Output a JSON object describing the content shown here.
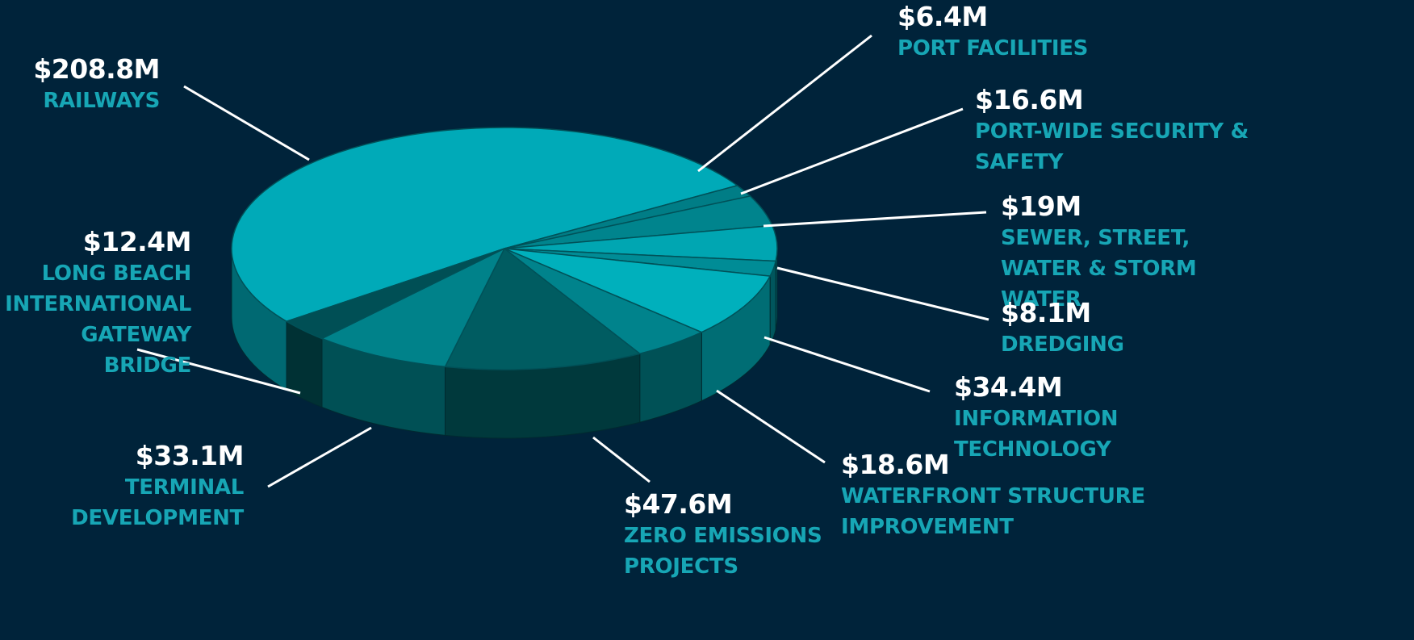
{
  "chart_data": {
    "type": "pie3d",
    "categories": [
      "RAILWAYS",
      "PORT FACILITIES",
      "PORT-WIDE SECURITY & SAFETY",
      "SEWER, STREET, WATER & STORM WATER",
      "DREDGING",
      "INFORMATION TECHNOLOGY",
      "WATERFRONT STRUCTURE IMPROVEMENT",
      "ZERO EMISSIONS PROJECTS",
      "TERMINAL DEVELOPMENT",
      "LONG BEACH INTERNATIONAL GATEWAY BRIDGE"
    ],
    "values": [
      208.8,
      6.4,
      16.6,
      19,
      8.1,
      34.4,
      18.6,
      47.6,
      33.1,
      12.4
    ],
    "value_labels": [
      "$208.8M",
      "$6.4M",
      "$16.6M",
      "$19M",
      "$8.1M",
      "$34.4M",
      "$18.6M",
      "$47.6M",
      "$33.1M",
      "$12.4M"
    ],
    "colors": [
      "#00aab8",
      "#007d86",
      "#00848d",
      "#00a6b2",
      "#008c96",
      "#00b0bc",
      "#00838c",
      "#005c61",
      "#00828a",
      "#004f55"
    ]
  }
}
